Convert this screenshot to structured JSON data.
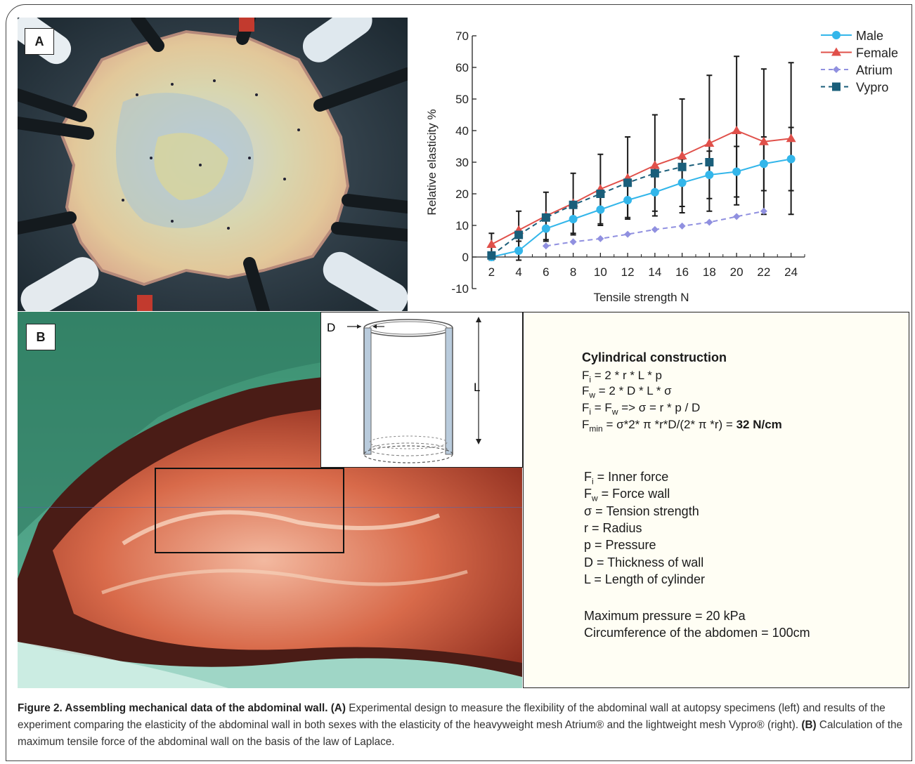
{
  "panel_a": {
    "label": "A"
  },
  "panel_b": {
    "label": "B"
  },
  "chart_data": {
    "type": "line",
    "xlabel": "Tensile strength N",
    "ylabel": "Relative elasticity %",
    "xlim": [
      1,
      25
    ],
    "ylim": [
      -10,
      70
    ],
    "x_ticks": [
      2,
      4,
      6,
      8,
      10,
      12,
      14,
      16,
      18,
      20,
      22,
      24
    ],
    "y_ticks": [
      -10,
      0,
      10,
      20,
      30,
      40,
      50,
      60,
      70
    ],
    "legend_position": "top-right",
    "series": [
      {
        "name": "Male",
        "color": "#33b6ea",
        "marker": "circle",
        "dash": "solid",
        "x": [
          2,
          4,
          6,
          8,
          10,
          12,
          14,
          16,
          18,
          20,
          22,
          24
        ],
        "y": [
          0,
          2,
          9,
          12,
          15,
          18,
          20.5,
          23.5,
          26,
          27,
          29.5,
          31
        ],
        "err": [
          1,
          3,
          4,
          5,
          5,
          5.5,
          6,
          7.5,
          7.5,
          8,
          8.5,
          10
        ]
      },
      {
        "name": "Female",
        "color": "#e0504a",
        "marker": "triangle",
        "dash": "solid",
        "x": [
          2,
          4,
          6,
          8,
          10,
          12,
          14,
          16,
          18,
          20,
          22,
          24
        ],
        "y": [
          4,
          8.5,
          13,
          17,
          21.5,
          25,
          29,
          32,
          36,
          40,
          36.5,
          37.5
        ],
        "err": [
          3.5,
          6,
          7.5,
          9.5,
          11,
          13,
          16,
          18,
          21.5,
          23.5,
          23,
          24
        ]
      },
      {
        "name": "Atrium",
        "color": "#9090e0",
        "marker": "diamond",
        "dash": "dashed",
        "x": [
          6,
          8,
          10,
          12,
          14,
          16,
          18,
          20,
          22
        ],
        "y": [
          3.5,
          4.8,
          5.8,
          7.2,
          8.7,
          9.8,
          11,
          12.8,
          14.5
        ],
        "err": []
      },
      {
        "name": "Vypro",
        "color": "#1a5e7a",
        "marker": "square",
        "dash": "dashed",
        "x": [
          2,
          4,
          6,
          8,
          10,
          12,
          14,
          16,
          18
        ],
        "y": [
          0.5,
          7,
          12.5,
          16.5,
          20,
          23.5,
          26.5,
          28.5,
          30
        ],
        "err": []
      }
    ]
  },
  "inset": {
    "label_d": "D",
    "label_l": "L"
  },
  "formula": {
    "title": "Cylindrical construction",
    "line1_a": "F",
    "line1_sub": "i",
    "line1_b": " = 2 * r * L * p",
    "line2_a": "F",
    "line2_sub": "w",
    "line2_b": " = 2 * D * L * σ",
    "line3_a": "F",
    "line3_sub1": "i",
    "line3_b": " = F",
    "line3_sub2": "w",
    "line3_c": " => σ = r * p / D",
    "line4_a": "F",
    "line4_sub": "min",
    "line4_b": " = σ*2* π *r*D/(2* π *r) = ",
    "line4_bold": "32 N/cm",
    "defs": [
      {
        "sym": "F",
        "sub": "i",
        "text": " = Inner force"
      },
      {
        "sym": "F",
        "sub": "w",
        "text": " = Force wall"
      },
      {
        "sym": "σ",
        "sub": "",
        "text": " = Tension strength"
      },
      {
        "sym": "r",
        "sub": "",
        "text": " = Radius"
      },
      {
        "sym": "p",
        "sub": "",
        "text": " = Pressure"
      },
      {
        "sym": "D",
        "sub": "",
        "text": " = Thickness of wall"
      },
      {
        "sym": "L",
        "sub": "",
        "text": " = Length of cylinder"
      }
    ],
    "max_pressure": "Maximum pressure = 20 kPa",
    "circumference": "Circumference of the abdomen = 100cm"
  },
  "caption": {
    "lead": "Figure 2. Assembling mechanical data of the abdominal wall.",
    "a_tag": "(A)",
    "a_text": " Experimental design to measure the flexibility of the abdominal wall at autopsy specimens (left) and results of the experiment comparing the elasticity of the abdominal wall in both sexes with the elasticity of the heavyweight mesh Atrium® and the lightweight mesh Vypro® (right).",
    "b_tag": "(B)",
    "b_text": " Calculation of the maximum tensile force of the abdominal wall on the basis of the law of Laplace."
  }
}
